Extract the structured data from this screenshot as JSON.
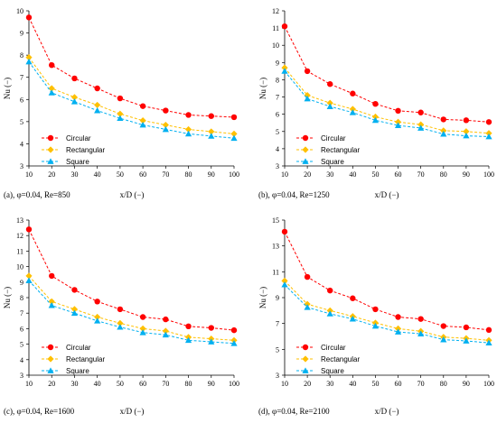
{
  "colors": {
    "circular": "#ff0000",
    "rectangular": "#ffc000",
    "square": "#00b0f0",
    "axis": "#000000"
  },
  "chart_data": [
    {
      "type": "line",
      "caption": "(a), φ=0.04, Re=850",
      "xlabel": "x/D (−)",
      "ylabel": "Nu (−)",
      "x": [
        10,
        20,
        30,
        40,
        50,
        60,
        70,
        80,
        90,
        100
      ],
      "xlim": [
        10,
        100
      ],
      "ylim": [
        3,
        10
      ],
      "xticks": [
        "10",
        "20",
        "30",
        "40",
        "50",
        "60",
        "70",
        "80",
        "90",
        "100"
      ],
      "yticks": [
        "3",
        "4",
        "5",
        "6",
        "7",
        "8",
        "9",
        "10"
      ],
      "grid": false,
      "legend_position": "bottom-left",
      "series": [
        {
          "name": "Circular",
          "marker": "circle",
          "values": [
            9.7,
            7.55,
            6.95,
            6.5,
            6.05,
            5.7,
            5.5,
            5.3,
            5.25,
            5.2
          ]
        },
        {
          "name": "Rectangular",
          "marker": "diamond",
          "values": [
            7.9,
            6.5,
            6.1,
            5.75,
            5.35,
            5.05,
            4.85,
            4.65,
            4.55,
            4.45
          ]
        },
        {
          "name": "Square",
          "marker": "triangle",
          "values": [
            7.7,
            6.3,
            5.9,
            5.5,
            5.15,
            4.85,
            4.65,
            4.45,
            4.35,
            4.25
          ]
        }
      ]
    },
    {
      "type": "line",
      "caption": "(b), φ=0.04, Re=1250",
      "xlabel": "x/D (−)",
      "ylabel": "Nu (−)",
      "x": [
        10,
        20,
        30,
        40,
        50,
        60,
        70,
        80,
        90,
        100
      ],
      "xlim": [
        10,
        100
      ],
      "ylim": [
        3,
        12
      ],
      "xticks": [
        "10",
        "20",
        "30",
        "40",
        "50",
        "60",
        "70",
        "80",
        "90",
        "100"
      ],
      "yticks": [
        "3",
        "4",
        "5",
        "6",
        "7",
        "8",
        "9",
        "10",
        "11",
        "12"
      ],
      "grid": false,
      "legend_position": "bottom-left",
      "series": [
        {
          "name": "Circular",
          "marker": "circle",
          "values": [
            11.1,
            8.5,
            7.75,
            7.2,
            6.6,
            6.2,
            6.1,
            5.7,
            5.65,
            5.55
          ]
        },
        {
          "name": "Rectangular",
          "marker": "diamond",
          "values": [
            8.7,
            7.1,
            6.65,
            6.3,
            5.85,
            5.55,
            5.4,
            5.05,
            5.0,
            4.9
          ]
        },
        {
          "name": "Square",
          "marker": "triangle",
          "values": [
            8.5,
            6.9,
            6.45,
            6.1,
            5.65,
            5.35,
            5.2,
            4.85,
            4.75,
            4.7
          ]
        }
      ]
    },
    {
      "type": "line",
      "caption": "(c), φ=0.04, Re=1600",
      "xlabel": "x/D (−)",
      "ylabel": "Nu (−)",
      "x": [
        10,
        20,
        30,
        40,
        50,
        60,
        70,
        80,
        90,
        100
      ],
      "xlim": [
        10,
        100
      ],
      "ylim": [
        3,
        13
      ],
      "xticks": [
        "10",
        "20",
        "30",
        "40",
        "50",
        "60",
        "70",
        "80",
        "90",
        "100"
      ],
      "yticks": [
        "3",
        "4",
        "5",
        "6",
        "7",
        "8",
        "9",
        "10",
        "11",
        "12",
        "13"
      ],
      "grid": false,
      "legend_position": "bottom-left",
      "series": [
        {
          "name": "Circular",
          "marker": "circle",
          "values": [
            12.4,
            9.4,
            8.5,
            7.75,
            7.25,
            6.75,
            6.6,
            6.15,
            6.05,
            5.9
          ]
        },
        {
          "name": "Rectangular",
          "marker": "diamond",
          "values": [
            9.4,
            7.75,
            7.25,
            6.75,
            6.35,
            6.0,
            5.85,
            5.45,
            5.35,
            5.25
          ]
        },
        {
          "name": "Square",
          "marker": "triangle",
          "values": [
            9.1,
            7.5,
            7.0,
            6.5,
            6.1,
            5.75,
            5.6,
            5.25,
            5.15,
            5.05
          ]
        }
      ]
    },
    {
      "type": "line",
      "caption": "(d), φ=0.04, Re=2100",
      "xlabel": "x/D (−)",
      "ylabel": "Nu (−)",
      "x": [
        10,
        20,
        30,
        40,
        50,
        60,
        70,
        80,
        90,
        100
      ],
      "xlim": [
        10,
        100
      ],
      "ylim": [
        3,
        15
      ],
      "xticks": [
        "10",
        "20",
        "30",
        "40",
        "50",
        "60",
        "70",
        "80",
        "90",
        "100"
      ],
      "yticks": [
        "3",
        "5",
        "7",
        "9",
        "11",
        "13",
        "15"
      ],
      "grid": false,
      "legend_position": "bottom-left",
      "series": [
        {
          "name": "Circular",
          "marker": "circle",
          "values": [
            14.1,
            10.6,
            9.55,
            8.95,
            8.1,
            7.5,
            7.35,
            6.8,
            6.7,
            6.5
          ]
        },
        {
          "name": "Rectangular",
          "marker": "diamond",
          "values": [
            10.3,
            8.5,
            8.0,
            7.55,
            7.05,
            6.6,
            6.4,
            5.95,
            5.85,
            5.7
          ]
        },
        {
          "name": "Square",
          "marker": "triangle",
          "values": [
            10.0,
            8.25,
            7.75,
            7.35,
            6.8,
            6.35,
            6.2,
            5.75,
            5.65,
            5.5
          ]
        }
      ]
    }
  ]
}
